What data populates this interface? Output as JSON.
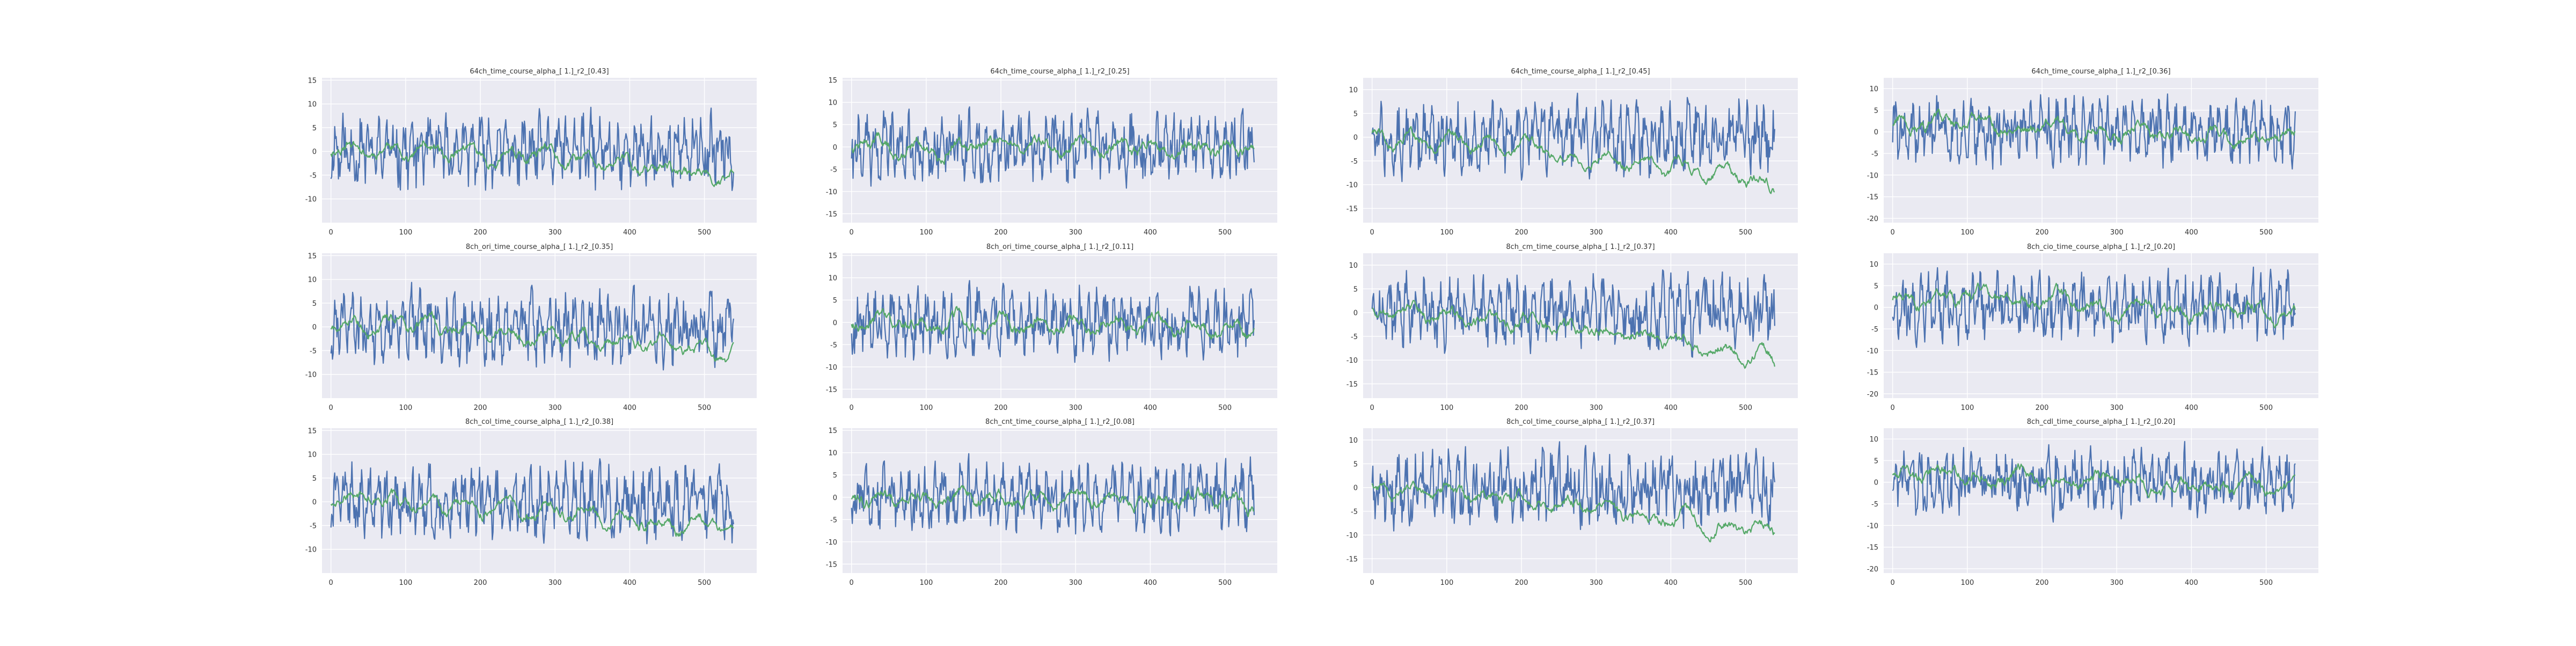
{
  "figure": {
    "background": "#ffffff",
    "plot_background": "#eaeaf2",
    "grid_color": "#ffffff"
  },
  "colors": {
    "series_1": "#4c72b0",
    "series_2": "#55a868",
    "text": "#333333"
  },
  "chart_data": [
    {
      "type": "line",
      "title": "64ch_time_course_alpha_[ 1.]_r2_[0.43]",
      "xlim": [
        -12,
        570
      ],
      "ylim": [
        -15,
        15.5
      ],
      "xticks": [
        0,
        100,
        200,
        300,
        400,
        500
      ],
      "yticks": [
        -10,
        -5,
        0,
        5,
        10,
        15
      ],
      "grid": true,
      "n_points": 540,
      "series": [
        {
          "amplitude": 7,
          "trend_start": 1,
          "trend_end": -5,
          "trend_noise": 2.5,
          "seed": 11
        }
      ]
    },
    {
      "type": "line",
      "title": "64ch_time_course_alpha_[ 1.]_r2_[0.25]",
      "xlim": [
        -12,
        570
      ],
      "ylim": [
        -17,
        15.5
      ],
      "xticks": [
        0,
        100,
        200,
        300,
        400,
        500
      ],
      "yticks": [
        -15,
        -10,
        -5,
        0,
        5,
        10,
        15
      ],
      "grid": true,
      "n_points": 540,
      "series": [
        {
          "amplitude": 7,
          "trend_start": 0,
          "trend_end": 0,
          "trend_noise": 3,
          "seed": 22
        }
      ]
    },
    {
      "type": "line",
      "title": "64ch_time_course_alpha_[ 1.]_r2_[0.45]",
      "xlim": [
        -12,
        570
      ],
      "ylim": [
        -18,
        12.5
      ],
      "xticks": [
        0,
        100,
        200,
        300,
        400,
        500
      ],
      "yticks": [
        -15,
        -10,
        -5,
        0,
        5,
        10
      ],
      "grid": true,
      "n_points": 540,
      "series": [
        {
          "amplitude": 7,
          "trend_start": 0,
          "trend_end": -10,
          "trend_noise": 2.5,
          "seed": 33
        }
      ]
    },
    {
      "type": "line",
      "title": "64ch_time_course_alpha_[ 1.]_r2_[0.36]",
      "xlim": [
        -12,
        570
      ],
      "ylim": [
        -21,
        12.5
      ],
      "xticks": [
        0,
        100,
        200,
        300,
        400,
        500
      ],
      "yticks": [
        -20,
        -15,
        -10,
        -5,
        0,
        5,
        10
      ],
      "grid": true,
      "n_points": 540,
      "series": [
        {
          "amplitude": 7,
          "trend_start": 2,
          "trend_end": -2,
          "trend_noise": 3,
          "seed": 44
        }
      ]
    },
    {
      "type": "line",
      "title": "8ch_ori_time_course_alpha_[ 1.]_r2_[0.35]",
      "xlim": [
        -12,
        570
      ],
      "ylim": [
        -15,
        15.5
      ],
      "xticks": [
        0,
        100,
        200,
        300,
        400,
        500
      ],
      "yticks": [
        -10,
        -5,
        0,
        5,
        10,
        15
      ],
      "grid": true,
      "n_points": 540,
      "series": [
        {
          "amplitude": 7,
          "trend_start": 1,
          "trend_end": -6,
          "trend_noise": 2.5,
          "seed": 55
        }
      ]
    },
    {
      "type": "line",
      "title": "8ch_ori_time_course_alpha_[ 1.]_r2_[0.11]",
      "xlim": [
        -12,
        570
      ],
      "ylim": [
        -17,
        15.5
      ],
      "xticks": [
        0,
        100,
        200,
        300,
        400,
        500
      ],
      "yticks": [
        -15,
        -10,
        -5,
        0,
        5,
        10,
        15
      ],
      "grid": true,
      "n_points": 540,
      "series": [
        {
          "amplitude": 7,
          "trend_start": 0,
          "trend_end": -1,
          "trend_noise": 3,
          "seed": 66
        }
      ]
    },
    {
      "type": "line",
      "title": "8ch_cm_time_course_alpha_[ 1.]_r2_[0.37]",
      "xlim": [
        -12,
        570
      ],
      "ylim": [
        -18,
        12.5
      ],
      "xticks": [
        0,
        100,
        200,
        300,
        400,
        500
      ],
      "yticks": [
        -15,
        -10,
        -5,
        0,
        5,
        10
      ],
      "grid": true,
      "n_points": 540,
      "series": [
        {
          "amplitude": 7,
          "trend_start": 0,
          "trend_end": -10,
          "trend_noise": 2.5,
          "seed": 77
        }
      ]
    },
    {
      "type": "line",
      "title": "8ch_cio_time_course_alpha_[ 1.]_r2_[0.20]",
      "xlim": [
        -12,
        570
      ],
      "ylim": [
        -21,
        12.5
      ],
      "xticks": [
        0,
        100,
        200,
        300,
        400,
        500
      ],
      "yticks": [
        -20,
        -15,
        -10,
        -5,
        0,
        5,
        10
      ],
      "grid": true,
      "n_points": 540,
      "series": [
        {
          "amplitude": 7,
          "trend_start": 2,
          "trend_end": -2,
          "trend_noise": 3,
          "seed": 88
        }
      ]
    },
    {
      "type": "line",
      "title": "8ch_col_time_course_alpha_[ 1.]_r2_[0.38]",
      "xlim": [
        -12,
        570
      ],
      "ylim": [
        -15,
        15.5
      ],
      "xticks": [
        0,
        100,
        200,
        300,
        400,
        500
      ],
      "yticks": [
        -10,
        -5,
        0,
        5,
        10,
        15
      ],
      "grid": true,
      "n_points": 540,
      "series": [
        {
          "amplitude": 7,
          "trend_start": 1,
          "trend_end": -6,
          "trend_noise": 2.5,
          "seed": 99
        }
      ]
    },
    {
      "type": "line",
      "title": "8ch_cnt_time_course_alpha_[ 1.]_r2_[0.08]",
      "xlim": [
        -12,
        570
      ],
      "ylim": [
        -17,
        15.5
      ],
      "xticks": [
        0,
        100,
        200,
        300,
        400,
        500
      ],
      "yticks": [
        -15,
        -10,
        -5,
        0,
        5,
        10,
        15
      ],
      "grid": true,
      "n_points": 540,
      "series": [
        {
          "amplitude": 7,
          "trend_start": 0,
          "trend_end": -1,
          "trend_noise": 3,
          "seed": 110
        }
      ]
    },
    {
      "type": "line",
      "title": "8ch_col_time_course_alpha_[ 1.]_r2_[0.37]",
      "xlim": [
        -12,
        570
      ],
      "ylim": [
        -18,
        12.5
      ],
      "xticks": [
        0,
        100,
        200,
        300,
        400,
        500
      ],
      "yticks": [
        -15,
        -10,
        -5,
        0,
        5,
        10
      ],
      "grid": true,
      "n_points": 540,
      "series": [
        {
          "amplitude": 7,
          "trend_start": 0,
          "trend_end": -10,
          "trend_noise": 2.5,
          "seed": 121
        }
      ]
    },
    {
      "type": "line",
      "title": "8ch_cdl_time_course_alpha_[ 1.]_r2_[0.20]",
      "xlim": [
        -12,
        570
      ],
      "ylim": [
        -21,
        12.5
      ],
      "xticks": [
        0,
        100,
        200,
        300,
        400,
        500
      ],
      "yticks": [
        -20,
        -15,
        -10,
        -5,
        0,
        5,
        10
      ],
      "grid": true,
      "n_points": 540,
      "series": [
        {
          "amplitude": 7,
          "trend_start": 2,
          "trend_end": -2,
          "trend_noise": 3,
          "seed": 132
        }
      ]
    }
  ]
}
